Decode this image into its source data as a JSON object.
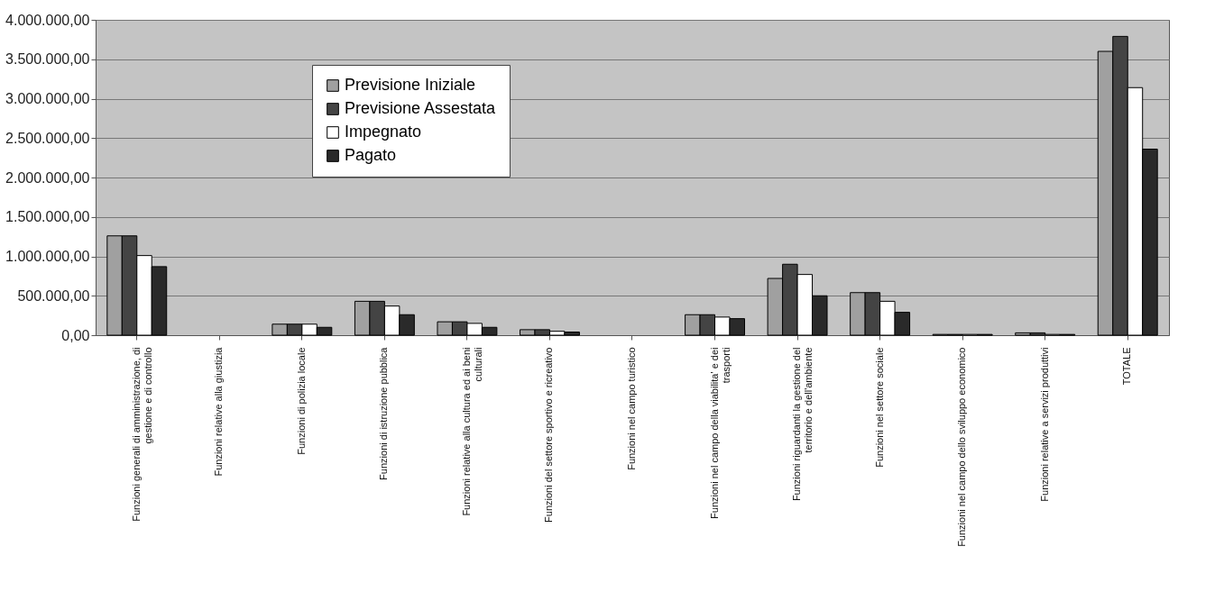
{
  "chart_data": {
    "type": "bar",
    "categories": [
      "Funzioni generali di amministrazione, di gestione e di controllo",
      "Funzioni relative alla giustizia",
      "Funzioni di polizia locale",
      "Funzioni di istruzione pubblica",
      "Funzioni relative alla cultura ed ai beni culturali",
      "Funzioni del settore sportivo e ricreativo",
      "Funzioni nel campo turistico",
      "Funzioni nel campo della viabilita' e dei trasporti",
      "Funzioni riguardanti la gestione del territorio e dell'ambiente",
      "Funzioni nel settore sociale",
      "Funzioni nel campo dello sviluppo economico",
      "Funzioni relative a servizi produttivi",
      "TOTALE"
    ],
    "series": [
      {
        "name": "Previsione Iniziale",
        "color": "#a0a0a0",
        "values": [
          1260000,
          0,
          140000,
          430000,
          170000,
          70000,
          0,
          260000,
          720000,
          540000,
          10000,
          30000,
          3600000
        ]
      },
      {
        "name": "Previsione Assestata",
        "color": "#444444",
        "values": [
          1260000,
          0,
          140000,
          430000,
          170000,
          70000,
          0,
          260000,
          900000,
          540000,
          10000,
          30000,
          3790000
        ]
      },
      {
        "name": "Impegnato",
        "color": "#ffffff",
        "values": [
          1010000,
          0,
          140000,
          370000,
          150000,
          50000,
          0,
          230000,
          770000,
          430000,
          10000,
          10000,
          3140000
        ]
      },
      {
        "name": "Pagato",
        "color": "#2a2a2a",
        "values": [
          870000,
          0,
          100000,
          260000,
          100000,
          40000,
          0,
          210000,
          500000,
          290000,
          10000,
          10000,
          2360000
        ]
      }
    ],
    "ylim": [
      0,
      4000000
    ],
    "yticks": [
      {
        "value": 0,
        "label": "0,00"
      },
      {
        "value": 500000,
        "label": "500.000,00"
      },
      {
        "value": 1000000,
        "label": "1.000.000,00"
      },
      {
        "value": 1500000,
        "label": "1.500.000,00"
      },
      {
        "value": 2000000,
        "label": "2.000.000,00"
      },
      {
        "value": 2500000,
        "label": "2.500.000,00"
      },
      {
        "value": 3000000,
        "label": "3.000.000,00"
      },
      {
        "value": 3500000,
        "label": "3.500.000,00"
      },
      {
        "value": 4000000,
        "label": "4.000.000,00"
      }
    ],
    "grid": "y",
    "legend": "top left"
  }
}
